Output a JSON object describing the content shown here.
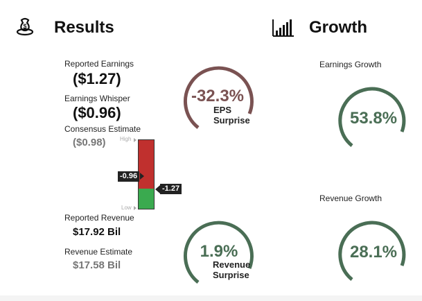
{
  "results": {
    "title": "Results",
    "icon": "money-bag-icon",
    "reported_earnings_label": "Reported Earnings",
    "reported_earnings_value": "($1.27)",
    "earnings_whisper_label": "Earnings Whisper",
    "earnings_whisper_value": "($0.96)",
    "consensus_label": "Consensus Estimate",
    "consensus_value": "($0.98)",
    "range_high_label": "High",
    "range_low_label": "Low",
    "whisper_tag": "-0.96",
    "reported_tag": "-1.27",
    "reported_revenue_label": "Reported Revenue",
    "reported_revenue_value": "$17.92 Bil",
    "revenue_estimate_label": "Revenue Estimate",
    "revenue_estimate_value": "$17.58 Bil",
    "eps_surprise_value": "-32.3%",
    "eps_surprise_line1": "EPS",
    "eps_surprise_line2": "Surprise",
    "revenue_surprise_value": "1.9%",
    "revenue_surprise_line1": "Revenue",
    "revenue_surprise_line2": "Surprise"
  },
  "growth": {
    "title": "Growth",
    "icon": "bar-chart-icon",
    "earnings_growth_label": "Earnings Growth",
    "earnings_growth_value": "53.8%",
    "revenue_growth_label": "Revenue Growth",
    "revenue_growth_value": "28.1%"
  },
  "colors": {
    "negative_ring": "#7a5252",
    "positive_ring": "#4a6e55",
    "bar_red": "#c0302e",
    "bar_green": "#3aaa4f"
  }
}
